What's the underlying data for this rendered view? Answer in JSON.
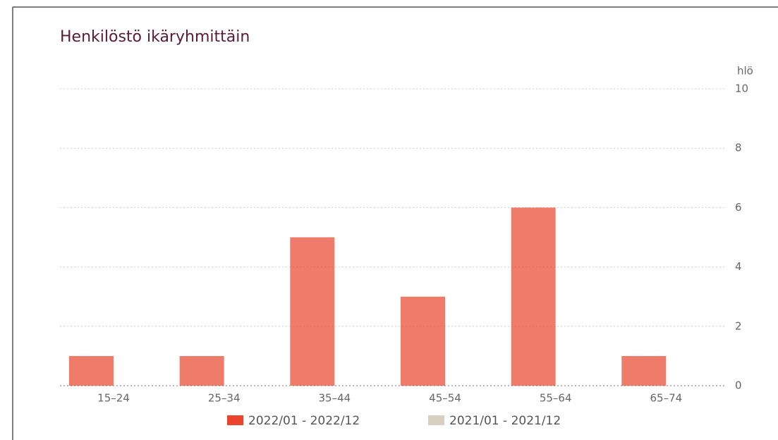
{
  "chart_data": {
    "type": "bar",
    "title": "Henkilöstö ikäryhmittäin",
    "y_label": "hlö",
    "categories": [
      "15–24",
      "25–34",
      "35–44",
      "45–54",
      "55–64",
      "65–74"
    ],
    "series": [
      {
        "name": "2022/01 - 2022/12",
        "color": "#e8452c",
        "values": [
          1,
          1,
          5,
          3,
          6,
          1
        ]
      },
      {
        "name": "2021/01 - 2021/12",
        "color": "#d9cfc0",
        "values": [
          0,
          0,
          0,
          0,
          0,
          0
        ]
      }
    ],
    "ylim": [
      0,
      10
    ],
    "yticks": [
      0,
      2,
      4,
      6,
      8,
      10
    ],
    "grid": true
  }
}
